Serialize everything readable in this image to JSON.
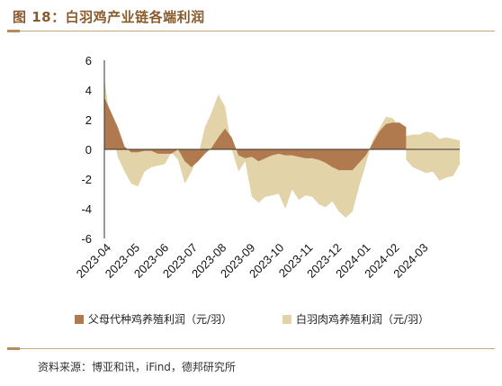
{
  "figure": {
    "title": "图 18：白羽鸡产业链各端利润",
    "source": "资料来源：博亚和讯，iFind，德邦研究所"
  },
  "colors": {
    "series_parent": "#b07a4e",
    "series_broiler": "#e3d3a9",
    "axis": "#333333",
    "title": "#8b5a2b",
    "rule": "#c8a884"
  },
  "chart_data": {
    "type": "area",
    "ylim": [
      -6,
      6
    ],
    "yticks": [
      -6,
      -4,
      -2,
      0,
      2,
      4,
      6
    ],
    "grid": false,
    "legend_position": "bottom",
    "x_tick_labels": [
      "2023-04",
      "2023-05",
      "2023-06",
      "2023-07",
      "2023-08",
      "2023-09",
      "2023-10",
      "2023-11",
      "2023-12",
      "2024-01",
      "2024-02",
      "2024-03"
    ],
    "x_tick_index": [
      0,
      4.3,
      8.6,
      12.9,
      17.2,
      21.5,
      25.8,
      30.1,
      34.4,
      38.7,
      43.0,
      47.3
    ],
    "series": [
      {
        "name": "父母代种鸡养殖利润（元/羽）",
        "color_key": "series_parent",
        "values": [
          3.5,
          2.5,
          1.5,
          0.2,
          -0.2,
          -0.2,
          -0.1,
          -0.1,
          -0.3,
          -0.3,
          -0.3,
          0.0,
          -0.8,
          -1.2,
          -0.8,
          -0.3,
          0.1,
          0.8,
          1.4,
          0.8,
          -0.4,
          -0.6,
          -0.5,
          -0.8,
          -0.6,
          -0.4,
          -0.3,
          -0.4,
          -0.4,
          -0.5,
          -0.6,
          -0.6,
          -0.7,
          -0.9,
          -1.2,
          -1.4,
          -1.4,
          -1.4,
          -0.9,
          -0.4,
          0.4,
          1.2,
          1.7,
          1.8,
          1.8,
          1.5
        ]
      },
      {
        "name": "白羽肉鸡养殖利润（元/羽）",
        "color_key": "series_broiler",
        "values": [
          4.8,
          1.5,
          -0.5,
          -1.5,
          -2.3,
          -2.5,
          -1.5,
          -1.2,
          -1.1,
          -1.0,
          -0.2,
          -0.7,
          -2.3,
          -1.5,
          -0.4,
          1.5,
          2.5,
          3.7,
          2.9,
          0.0,
          -1.5,
          -0.8,
          -3.2,
          -3.6,
          -3.2,
          -3.1,
          -3.0,
          -4.0,
          -2.7,
          -3.4,
          -3.1,
          -3.2,
          -3.7,
          -3.9,
          -3.5,
          -4.2,
          -4.6,
          -4.2,
          -2.5,
          -1.0,
          0.6,
          1.4,
          2.2,
          2.1,
          1.5,
          0.9,
          1.0,
          1.0,
          1.2,
          1.1,
          0.7,
          0.8,
          0.7,
          0.6
        ],
        "values_lower_band": [
          null,
          null,
          null,
          null,
          null,
          null,
          null,
          null,
          null,
          null,
          null,
          null,
          null,
          null,
          null,
          null,
          null,
          null,
          null,
          null,
          null,
          null,
          null,
          null,
          null,
          null,
          null,
          null,
          null,
          null,
          null,
          null,
          null,
          null,
          null,
          null,
          null,
          null,
          null,
          null,
          null,
          null,
          null,
          null,
          null,
          -0.7,
          -1.2,
          -1.4,
          -1.6,
          -1.5,
          -2.1,
          -1.9,
          -1.8,
          -1.0
        ]
      }
    ]
  }
}
